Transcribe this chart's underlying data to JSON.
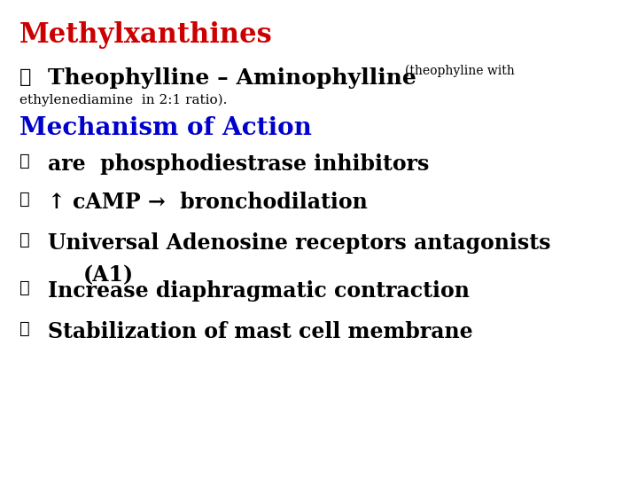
{
  "background_color": "#ffffff",
  "title": "Methylxanthines",
  "title_color": "#cc0000",
  "title_fontsize": 22,
  "subtitle_main": "Theophylline – Aminophylline",
  "subtitle_small": "(theophyline with",
  "subtitle_line2": "ethylenediamine  in 2:1 ratio).",
  "section2_title": "Mechanism of Action",
  "section2_color": "#0000cc",
  "section2_fontsize": 20,
  "bullet_marker": "➤",
  "bullet_fontsize": 17,
  "bullet_color": "#000000",
  "fig_width": 7.2,
  "fig_height": 5.4,
  "dpi": 100
}
